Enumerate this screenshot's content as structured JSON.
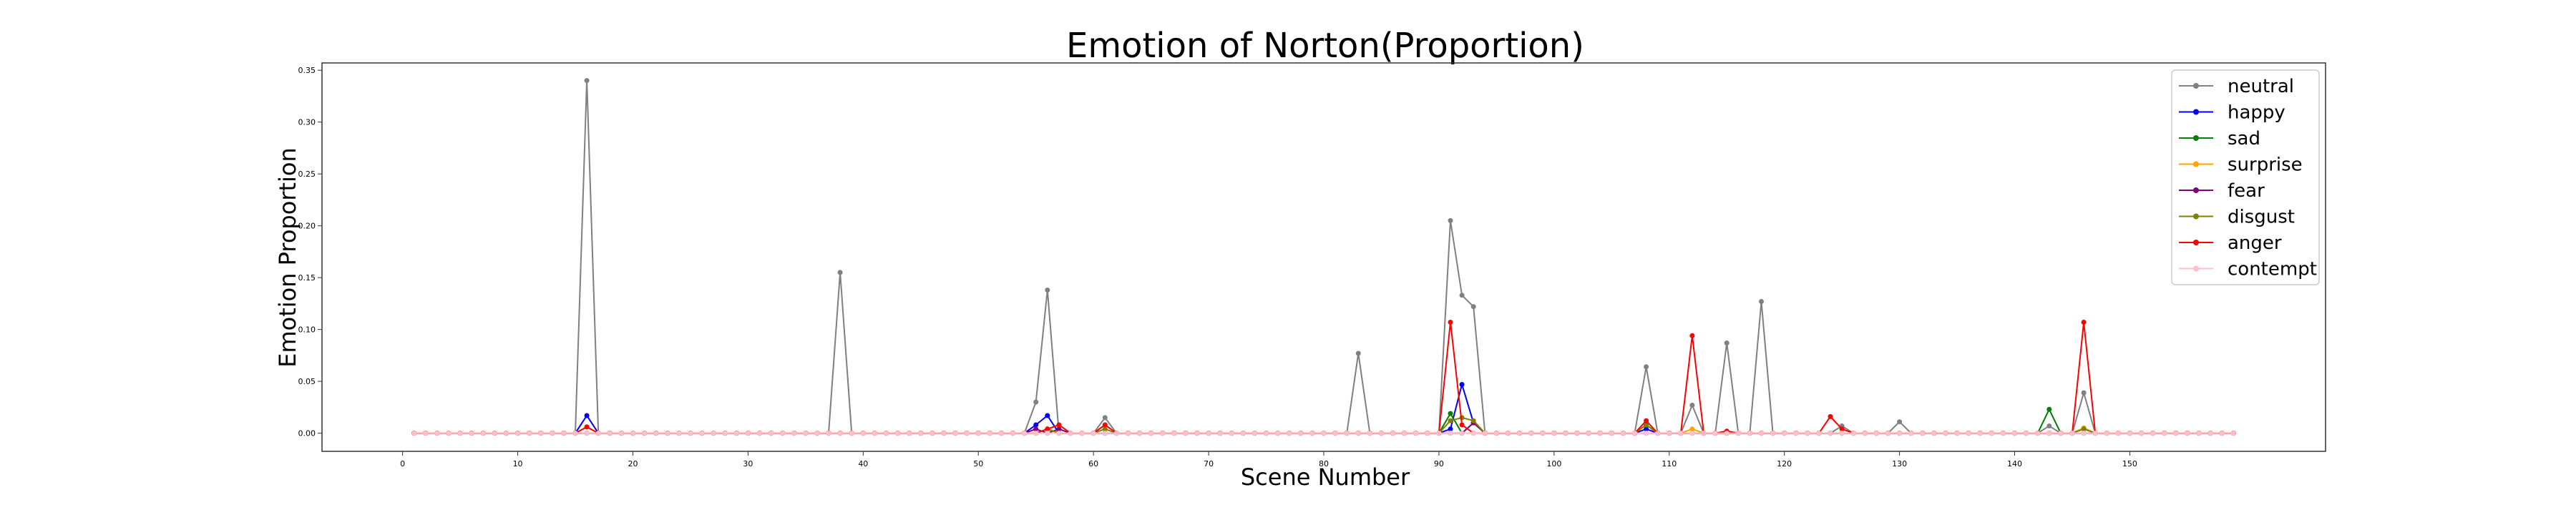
{
  "chart_data": {
    "type": "line",
    "title": "Emotion of Norton(Proportion)",
    "xlabel": "Scene Number",
    "ylabel": "Emotion Proportion",
    "xlim": [
      -7,
      167
    ],
    "ylim": [
      -0.0175,
      0.357
    ],
    "xticks": [
      0,
      10,
      20,
      30,
      40,
      50,
      60,
      70,
      80,
      90,
      100,
      110,
      120,
      130,
      140,
      150
    ],
    "yticks": [
      0.0,
      0.05,
      0.1,
      0.15,
      0.2,
      0.25,
      0.3,
      0.35
    ],
    "ytick_labels": [
      "0.00",
      "0.05",
      "0.10",
      "0.15",
      "0.20",
      "0.25",
      "0.30",
      "0.35"
    ],
    "x_range": [
      1,
      159
    ],
    "legend_position": "top-right",
    "grid": false,
    "series": [
      {
        "name": "neutral",
        "color": "#808080",
        "marker": "circle",
        "points": [
          [
            16,
            0.34
          ],
          [
            38,
            0.155
          ],
          [
            55,
            0.03
          ],
          [
            56,
            0.138
          ],
          [
            61,
            0.015
          ],
          [
            83,
            0.077
          ],
          [
            91,
            0.205
          ],
          [
            92,
            0.133
          ],
          [
            93,
            0.122
          ],
          [
            108,
            0.064
          ],
          [
            112,
            0.027
          ],
          [
            115,
            0.087
          ],
          [
            118,
            0.127
          ],
          [
            125,
            0.007
          ],
          [
            130,
            0.011
          ],
          [
            143,
            0.007
          ],
          [
            146,
            0.039
          ]
        ]
      },
      {
        "name": "happy",
        "color": "#0000ff",
        "marker": "circle",
        "points": [
          [
            16,
            0.017
          ],
          [
            55,
            0.008
          ],
          [
            56,
            0.017
          ],
          [
            91,
            0.004
          ],
          [
            92,
            0.047
          ],
          [
            93,
            0.01
          ],
          [
            108,
            0.004
          ]
        ]
      },
      {
        "name": "sad",
        "color": "#008000",
        "marker": "circle",
        "points": [
          [
            56,
            0.004
          ],
          [
            91,
            0.019
          ],
          [
            93,
            0.01
          ],
          [
            108,
            0.008
          ],
          [
            143,
            0.023
          ],
          [
            146,
            0.005
          ]
        ]
      },
      {
        "name": "surprise",
        "color": "#ffa500",
        "marker": "circle",
        "points": [
          [
            16,
            0.006
          ],
          [
            56,
            0.004
          ],
          [
            61,
            0.008
          ],
          [
            108,
            0.008
          ],
          [
            112,
            0.004
          ],
          [
            146,
            0.005
          ]
        ]
      },
      {
        "name": "fear",
        "color": "#800080",
        "marker": "circle",
        "points": [
          [
            55,
            0.004
          ],
          [
            57,
            0.004
          ],
          [
            93,
            0.01
          ]
        ]
      },
      {
        "name": "disgust",
        "color": "#808000",
        "marker": "circle",
        "points": [
          [
            56,
            0.004
          ],
          [
            61,
            0.004
          ],
          [
            91,
            0.012
          ],
          [
            92,
            0.015
          ],
          [
            93,
            0.012
          ],
          [
            108,
            0.008
          ],
          [
            146,
            0.004
          ]
        ]
      },
      {
        "name": "anger",
        "color": "#ff0000",
        "marker": "circle",
        "points": [
          [
            16,
            0.006
          ],
          [
            56,
            0.004
          ],
          [
            57,
            0.008
          ],
          [
            61,
            0.008
          ],
          [
            91,
            0.107
          ],
          [
            92,
            0.008
          ],
          [
            108,
            0.012
          ],
          [
            112,
            0.094
          ],
          [
            115,
            0.002
          ],
          [
            124,
            0.016
          ],
          [
            125,
            0.004
          ],
          [
            146,
            0.107
          ]
        ]
      },
      {
        "name": "contempt",
        "color": "#ffc0cb",
        "marker": "circle",
        "points": []
      }
    ]
  }
}
